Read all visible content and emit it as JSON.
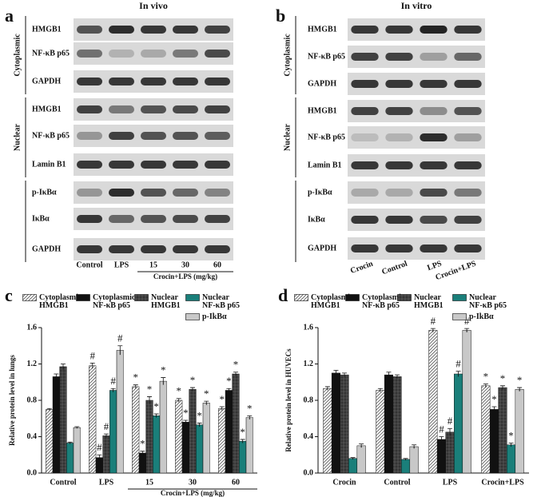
{
  "panel_a": {
    "label": "a",
    "title": "In vivo",
    "group_labels": [
      "Cytoplasmic",
      "Nuclear"
    ],
    "rows": [
      "HMGB1",
      "NF-κB p65",
      "GAPDH",
      "HMGB1",
      "NF-κB p65",
      "Lamin B1",
      "p-IκBα",
      "IκBα",
      "GAPDH"
    ],
    "lanes": [
      "Control",
      "LPS",
      "15",
      "30",
      "60"
    ],
    "lane_note": "Crocin+LPS (mg/kg)"
  },
  "panel_b": {
    "label": "b",
    "title": "In vitro",
    "group_labels": [
      "Cytoplasmic",
      "Nuclear"
    ],
    "rows": [
      "HMGB1",
      "NF-κB p65",
      "GAPDH",
      "HMGB1",
      "NF-κB p65",
      "Lamin B1",
      "p-IκBα",
      "IκBα",
      "GAPDH"
    ],
    "lanes": [
      "Crocin",
      "Control",
      "LPS",
      "Crocin+LPS"
    ]
  },
  "chart_data": [
    {
      "type": "bar",
      "label": "c",
      "y_label": "Relative protein level in lungs",
      "categories": [
        "Control",
        "LPS",
        "15",
        "30",
        "60"
      ],
      "x_note": "Crocin+LPS (mg/kg)",
      "ylim": [
        0,
        1.6
      ],
      "yticks": [
        {
          "value": 0,
          "label": "0.0"
        },
        0.4,
        0.8,
        1.2,
        1.6
      ],
      "series": [
        {
          "name": "Cytoplasmic HMGB1",
          "color": "#555555",
          "pattern": "diagonal",
          "values": [
            0.7,
            1.18,
            0.95,
            0.8,
            0.71
          ],
          "errors": [
            0.01,
            0.03,
            0.02,
            0.02,
            0.02
          ],
          "markers": [
            null,
            "#",
            "*",
            "*",
            "*"
          ]
        },
        {
          "name": "Cytoplasmic NF-κB p65",
          "color": "#111111",
          "pattern": "solid",
          "values": [
            1.06,
            0.17,
            0.22,
            0.56,
            0.91
          ],
          "errors": [
            0.03,
            0.03,
            0.02,
            0.02,
            0.02
          ],
          "markers": [
            null,
            "#",
            "*",
            "*",
            "*"
          ]
        },
        {
          "name": "Nuclear HMGB1",
          "color": "#333333",
          "pattern": "grid",
          "values": [
            1.17,
            0.41,
            0.8,
            0.92,
            1.09
          ],
          "errors": [
            0.03,
            0.02,
            0.04,
            0.02,
            0.02
          ],
          "markers": [
            null,
            "#",
            "*",
            "*",
            "*"
          ]
        },
        {
          "name": "Nuclear NF-κB p65",
          "color": "#1a7f7a",
          "pattern": "solid",
          "values": [
            0.33,
            0.91,
            0.63,
            0.53,
            0.35
          ],
          "errors": [
            0.01,
            0.02,
            0.02,
            0.02,
            0.02
          ],
          "markers": [
            null,
            "#",
            "*",
            "*",
            "*"
          ]
        },
        {
          "name": "p-IkBα",
          "color": "#777777",
          "pattern": "vertical",
          "values": [
            0.5,
            1.35,
            1.01,
            0.77,
            0.61
          ],
          "errors": [
            0.01,
            0.05,
            0.04,
            0.02,
            0.02
          ],
          "markers": [
            null,
            "#",
            "*",
            "*",
            "*"
          ]
        }
      ]
    },
    {
      "type": "bar",
      "label": "d",
      "y_label": "Relative protein level in HUVECs",
      "categories": [
        "Crocin",
        "Control",
        "LPS",
        "Crocin+LPS"
      ],
      "ylim": [
        0,
        1.6
      ],
      "yticks": [
        {
          "value": 0,
          "label": "0.0"
        },
        0.4,
        0.8,
        1.2,
        1.6
      ],
      "series": [
        {
          "name": "Cytoplasmic HMGB1",
          "color": "#555555",
          "pattern": "diagonal",
          "values": [
            0.93,
            0.91,
            1.57,
            0.96
          ],
          "errors": [
            0.02,
            0.02,
            0.02,
            0.02
          ],
          "markers": [
            null,
            null,
            "#",
            "*"
          ]
        },
        {
          "name": "Cytoplasmic NF-κB p65",
          "color": "#111111",
          "pattern": "solid",
          "values": [
            1.1,
            1.08,
            0.37,
            0.7
          ],
          "errors": [
            0.03,
            0.03,
            0.03,
            0.03
          ],
          "markers": [
            null,
            null,
            "#",
            "*"
          ]
        },
        {
          "name": "Nuclear HMGB1",
          "color": "#333333",
          "pattern": "grid",
          "values": [
            1.08,
            1.06,
            0.45,
            0.94
          ],
          "errors": [
            0.02,
            0.02,
            0.04,
            0.02
          ],
          "markers": [
            null,
            null,
            "#",
            "*"
          ]
        },
        {
          "name": "Nuclear NF-κB p65",
          "color": "#1a7f7a",
          "pattern": "solid",
          "values": [
            0.16,
            0.15,
            1.09,
            0.31
          ],
          "errors": [
            0.01,
            0.01,
            0.03,
            0.02
          ],
          "markers": [
            null,
            null,
            "#",
            "*"
          ]
        },
        {
          "name": "p-IkBα",
          "color": "#777777",
          "pattern": "vertical",
          "values": [
            0.3,
            0.29,
            1.57,
            0.92
          ],
          "errors": [
            0.02,
            0.02,
            0.02,
            0.02
          ],
          "markers": [
            null,
            null,
            "#",
            "*"
          ]
        }
      ]
    }
  ]
}
